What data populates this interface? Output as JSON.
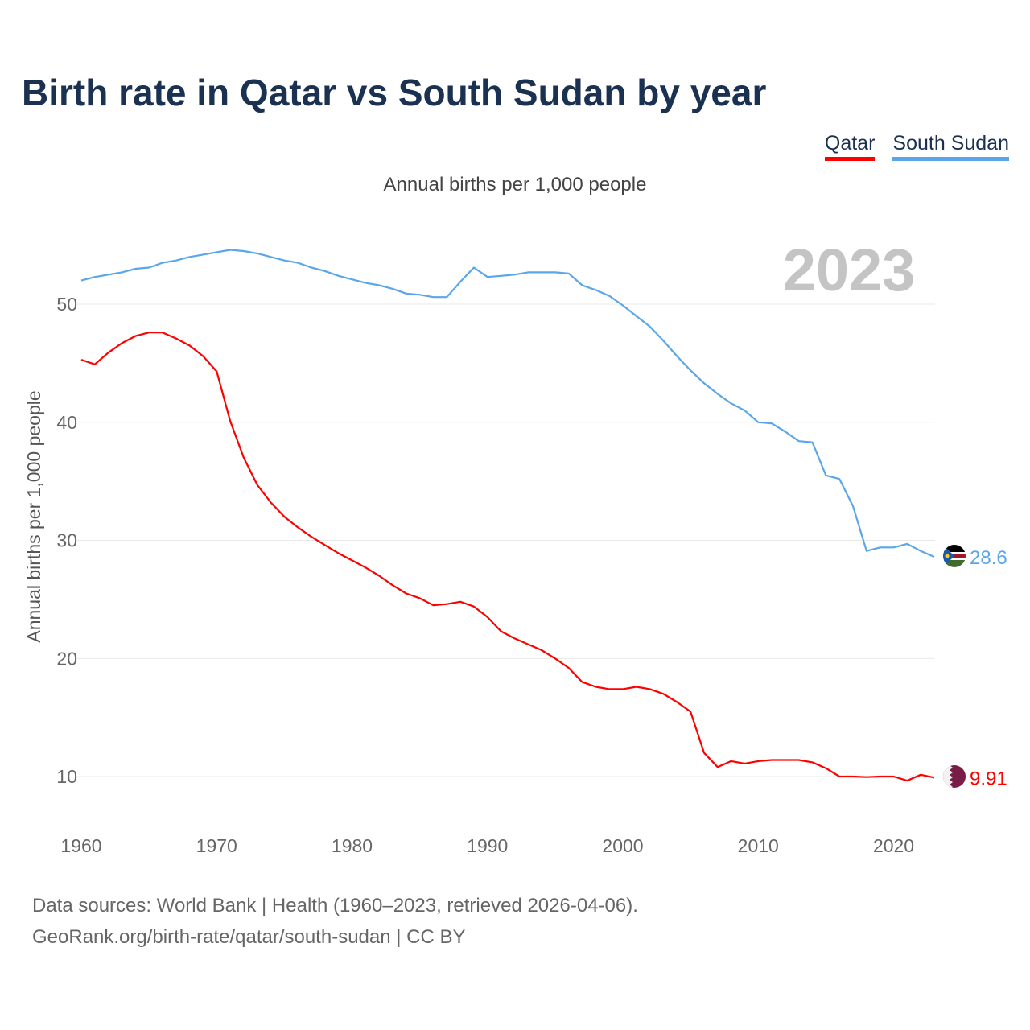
{
  "title": "Birth rate in Qatar vs South Sudan by year",
  "subtitle": "Annual births per 1,000 people",
  "legend": [
    {
      "label": "Qatar",
      "color": "#ff0000"
    },
    {
      "label": "South Sudan",
      "color": "#5aa6ea"
    }
  ],
  "year_watermark": "2023",
  "source_line1": "Data sources: World Bank | Health (1960–2023, retrieved 2026-04-06).",
  "source_line2": "GeoRank.org/birth-rate/qatar/south-sudan | CC BY",
  "chart_data": {
    "type": "line",
    "title": "Birth rate in Qatar vs South Sudan by year",
    "xlabel": "",
    "ylabel": "Annual births per 1,000 people",
    "xlim": [
      1960,
      2023
    ],
    "ylim": [
      5,
      57
    ],
    "xticks": [
      1960,
      1970,
      1980,
      1990,
      2000,
      2010,
      2020
    ],
    "yticks": [
      10,
      20,
      30,
      40,
      50
    ],
    "grid": true,
    "legend_position": "top-right",
    "x": [
      1960,
      1961,
      1962,
      1963,
      1964,
      1965,
      1966,
      1967,
      1968,
      1969,
      1970,
      1971,
      1972,
      1973,
      1974,
      1975,
      1976,
      1977,
      1978,
      1979,
      1980,
      1981,
      1982,
      1983,
      1984,
      1985,
      1986,
      1987,
      1988,
      1989,
      1990,
      1991,
      1992,
      1993,
      1994,
      1995,
      1996,
      1997,
      1998,
      1999,
      2000,
      2001,
      2002,
      2003,
      2004,
      2005,
      2006,
      2007,
      2008,
      2009,
      2010,
      2011,
      2012,
      2013,
      2014,
      2015,
      2016,
      2017,
      2018,
      2019,
      2020,
      2021,
      2022,
      2023
    ],
    "series": [
      {
        "name": "Qatar",
        "color": "#ff0000",
        "end_label": "9.91",
        "values": [
          45.3,
          44.9,
          45.9,
          46.7,
          47.3,
          47.6,
          47.6,
          47.1,
          46.5,
          45.6,
          44.3,
          40.1,
          37.0,
          34.7,
          33.2,
          32.0,
          31.1,
          30.3,
          29.6,
          28.9,
          28.3,
          27.7,
          27.0,
          26.2,
          25.5,
          25.1,
          24.5,
          24.6,
          24.8,
          24.4,
          23.5,
          22.3,
          21.7,
          21.2,
          20.7,
          20.0,
          19.2,
          18.0,
          17.6,
          17.4,
          17.4,
          17.6,
          17.4,
          17.0,
          16.3,
          15.5,
          12.0,
          10.8,
          11.3,
          11.1,
          11.3,
          11.4,
          11.4,
          11.4,
          11.2,
          10.7,
          10.0,
          10.0,
          9.95,
          10.0,
          10.0,
          9.65,
          10.15,
          9.91
        ]
      },
      {
        "name": "South Sudan",
        "color": "#5aa6ea",
        "end_label": "28.6",
        "values": [
          52.0,
          52.3,
          52.5,
          52.7,
          53.0,
          53.1,
          53.5,
          53.7,
          54.0,
          54.2,
          54.4,
          54.6,
          54.5,
          54.3,
          54.0,
          53.7,
          53.5,
          53.1,
          52.8,
          52.4,
          52.1,
          51.8,
          51.6,
          51.3,
          50.9,
          50.8,
          50.6,
          50.6,
          51.9,
          53.1,
          52.3,
          52.4,
          52.5,
          52.7,
          52.7,
          52.7,
          52.6,
          51.6,
          51.2,
          50.7,
          49.9,
          49.0,
          48.1,
          46.9,
          45.6,
          44.4,
          43.3,
          42.4,
          41.6,
          41.0,
          40.0,
          39.9,
          39.2,
          38.4,
          38.3,
          35.5,
          35.2,
          32.9,
          29.1,
          29.4,
          29.4,
          29.7,
          29.1,
          28.6
        ]
      }
    ]
  }
}
